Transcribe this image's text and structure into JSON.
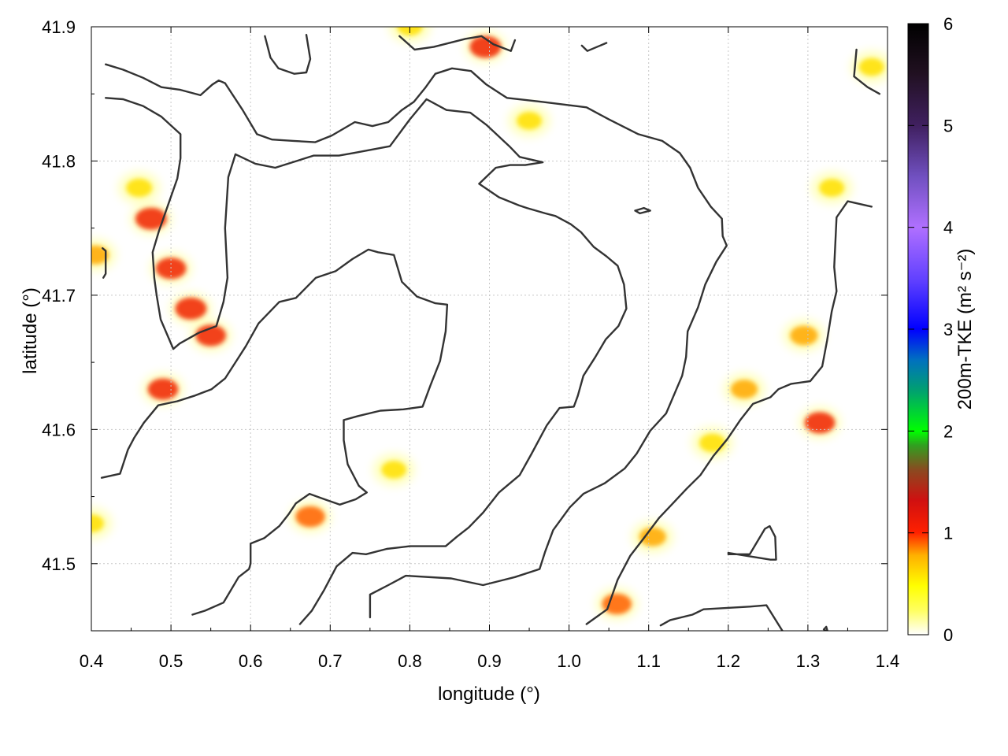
{
  "chart_data": {
    "type": "heatmap",
    "title": "",
    "xlabel": "longitude (°)",
    "ylabel": "latitude (°)",
    "colorbar_label": "200m-TKE (m² s⁻²)",
    "xlim": [
      0.4,
      1.4
    ],
    "ylim": [
      41.45,
      41.9
    ],
    "clim": [
      0,
      6
    ],
    "x_ticks": [
      "0.4",
      "0.5",
      "0.6",
      "0.7",
      "0.8",
      "0.9",
      "1.0",
      "1.1",
      "1.2",
      "1.3",
      "1.4"
    ],
    "y_ticks": [
      "41.5",
      "41.6",
      "41.7",
      "41.8",
      "41.9"
    ],
    "colorbar_ticks": [
      "0",
      "1",
      "2",
      "3",
      "4",
      "5",
      "6"
    ],
    "grid": true,
    "colorscale": [
      "#ffffff",
      "#ffff00",
      "#ff9900",
      "#ff0000",
      "#8b3a1a",
      "#00ff00",
      "#00a0a0",
      "#0000ff",
      "#a070ff",
      "#30205a",
      "#000000"
    ],
    "hotspots": [
      {
        "lon": 0.475,
        "lat": 41.757,
        "value": 1.0
      },
      {
        "lon": 0.5,
        "lat": 41.72,
        "value": 0.9
      },
      {
        "lon": 0.525,
        "lat": 41.69,
        "value": 1.0
      },
      {
        "lon": 0.55,
        "lat": 41.67,
        "value": 0.9
      },
      {
        "lon": 0.49,
        "lat": 41.63,
        "value": 0.9
      },
      {
        "lon": 0.46,
        "lat": 41.78,
        "value": 0.4
      },
      {
        "lon": 0.405,
        "lat": 41.73,
        "value": 0.5
      },
      {
        "lon": 0.895,
        "lat": 41.885,
        "value": 1.0
      },
      {
        "lon": 0.675,
        "lat": 41.535,
        "value": 0.8
      },
      {
        "lon": 1.06,
        "lat": 41.47,
        "value": 0.8
      },
      {
        "lon": 1.105,
        "lat": 41.52,
        "value": 0.5
      },
      {
        "lon": 1.315,
        "lat": 41.605,
        "value": 0.9
      },
      {
        "lon": 1.295,
        "lat": 41.67,
        "value": 0.6
      },
      {
        "lon": 1.22,
        "lat": 41.63,
        "value": 0.5
      },
      {
        "lon": 1.18,
        "lat": 41.59,
        "value": 0.4
      },
      {
        "lon": 1.33,
        "lat": 41.78,
        "value": 0.3
      },
      {
        "lon": 0.95,
        "lat": 41.83,
        "value": 0.3
      },
      {
        "lon": 0.78,
        "lat": 41.57,
        "value": 0.3
      },
      {
        "lon": 0.4,
        "lat": 41.53,
        "value": 0.3
      },
      {
        "lon": 0.8,
        "lat": 41.9,
        "value": 0.3
      },
      {
        "lon": 1.38,
        "lat": 41.87,
        "value": 0.3
      }
    ],
    "contours": [
      [
        [
          0.418,
          41.872
        ],
        [
          0.44,
          41.868
        ],
        [
          0.465,
          41.862
        ],
        [
          0.488,
          41.855
        ],
        [
          0.512,
          41.853
        ],
        [
          0.537,
          41.849
        ],
        [
          0.552,
          41.857
        ],
        [
          0.56,
          41.86
        ],
        [
          0.568,
          41.858
        ],
        [
          0.59,
          41.838
        ],
        [
          0.608,
          41.82
        ],
        [
          0.627,
          41.816
        ],
        [
          0.654,
          41.815
        ],
        [
          0.681,
          41.814
        ],
        [
          0.702,
          41.819
        ],
        [
          0.731,
          41.829
        ],
        [
          0.753,
          41.826
        ],
        [
          0.773,
          41.829
        ],
        [
          0.79,
          41.838
        ],
        [
          0.805,
          41.844
        ],
        [
          0.82,
          41.855
        ],
        [
          0.832,
          41.865
        ],
        [
          0.853,
          41.869
        ],
        [
          0.877,
          41.867
        ],
        [
          0.896,
          41.857
        ],
        [
          0.922,
          41.847
        ],
        [
          0.967,
          41.844
        ],
        [
          1.022,
          41.84
        ],
        [
          1.05,
          41.831
        ],
        [
          1.087,
          41.82
        ],
        [
          1.117,
          41.815
        ],
        [
          1.139,
          41.806
        ],
        [
          1.152,
          41.795
        ],
        [
          1.162,
          41.78
        ],
        [
          1.178,
          41.766
        ],
        [
          1.192,
          41.757
        ],
        [
          1.193,
          41.744
        ],
        [
          1.198,
          41.737
        ],
        [
          1.185,
          41.725
        ],
        [
          1.171,
          41.708
        ],
        [
          1.162,
          41.691
        ],
        [
          1.149,
          41.673
        ],
        [
          1.147,
          41.654
        ],
        [
          1.142,
          41.64
        ],
        [
          1.122,
          41.612
        ],
        [
          1.102,
          41.599
        ],
        [
          1.085,
          41.582
        ],
        [
          1.07,
          41.571
        ],
        [
          1.045,
          41.56
        ],
        [
          1.018,
          41.552
        ],
        [
          1.001,
          41.542
        ],
        [
          0.98,
          41.525
        ],
        [
          0.97,
          41.509
        ],
        [
          0.963,
          41.496
        ],
        [
          0.932,
          41.49
        ],
        [
          0.892,
          41.484
        ],
        [
          0.852,
          41.489
        ],
        [
          0.795,
          41.491
        ],
        [
          0.773,
          41.484
        ],
        [
          0.75,
          41.477
        ],
        [
          0.75,
          41.46
        ]
      ],
      [
        [
          0.418,
          41.847
        ],
        [
          0.44,
          41.846
        ],
        [
          0.465,
          41.841
        ],
        [
          0.488,
          41.833
        ],
        [
          0.512,
          41.82
        ],
        [
          0.512,
          41.802
        ],
        [
          0.508,
          41.787
        ],
        [
          0.485,
          41.748
        ],
        [
          0.477,
          41.732
        ],
        [
          0.479,
          41.713
        ],
        [
          0.482,
          41.7
        ],
        [
          0.487,
          41.682
        ],
        [
          0.503,
          41.66
        ],
        [
          0.511,
          41.664
        ],
        [
          0.535,
          41.672
        ],
        [
          0.557,
          41.677
        ],
        [
          0.566,
          41.695
        ],
        [
          0.571,
          41.713
        ],
        [
          0.568,
          41.75
        ],
        [
          0.572,
          41.788
        ],
        [
          0.581,
          41.805
        ],
        [
          0.606,
          41.798
        ],
        [
          0.631,
          41.795
        ],
        [
          0.679,
          41.804
        ],
        [
          0.711,
          41.804
        ],
        [
          0.73,
          41.806
        ],
        [
          0.775,
          41.811
        ],
        [
          0.8,
          41.831
        ],
        [
          0.821,
          41.846
        ],
        [
          0.846,
          41.838
        ],
        [
          0.876,
          41.836
        ],
        [
          0.896,
          41.827
        ],
        [
          0.925,
          41.811
        ],
        [
          0.938,
          41.803
        ],
        [
          0.967,
          41.799
        ],
        [
          0.945,
          41.797
        ],
        [
          0.926,
          41.797
        ],
        [
          0.908,
          41.795
        ],
        [
          0.887,
          41.783
        ],
        [
          0.912,
          41.773
        ],
        [
          0.937,
          41.767
        ],
        [
          0.947,
          41.765
        ],
        [
          0.97,
          41.761
        ],
        [
          0.983,
          41.759
        ],
        [
          1.002,
          41.753
        ],
        [
          1.015,
          41.747
        ],
        [
          1.031,
          41.736
        ],
        [
          1.047,
          41.729
        ],
        [
          1.061,
          41.722
        ],
        [
          1.069,
          41.708
        ],
        [
          1.072,
          41.69
        ],
        [
          1.062,
          41.677
        ],
        [
          1.046,
          41.667
        ],
        [
          1.033,
          41.654
        ],
        [
          1.018,
          41.64
        ],
        [
          1.011,
          41.625
        ],
        [
          1.006,
          41.617
        ],
        [
          0.988,
          41.616
        ],
        [
          0.972,
          41.603
        ],
        [
          0.953,
          41.582
        ],
        [
          0.938,
          41.566
        ],
        [
          0.912,
          41.553
        ],
        [
          0.892,
          41.538
        ],
        [
          0.874,
          41.527
        ],
        [
          0.859,
          41.52
        ],
        [
          0.845,
          41.513
        ],
        [
          0.8,
          41.513
        ],
        [
          0.771,
          41.511
        ],
        [
          0.745,
          41.507
        ],
        [
          0.728,
          41.508
        ],
        [
          0.708,
          41.498
        ],
        [
          0.692,
          41.48
        ],
        [
          0.677,
          41.465
        ],
        [
          0.662,
          41.455
        ]
      ],
      [
        [
          0.413,
          41.564
        ],
        [
          0.436,
          41.567
        ],
        [
          0.446,
          41.585
        ],
        [
          0.454,
          41.594
        ],
        [
          0.466,
          41.605
        ],
        [
          0.484,
          41.618
        ],
        [
          0.508,
          41.621
        ],
        [
          0.529,
          41.625
        ],
        [
          0.551,
          41.63
        ],
        [
          0.568,
          41.638
        ],
        [
          0.581,
          41.65
        ],
        [
          0.594,
          41.662
        ],
        [
          0.61,
          41.679
        ],
        [
          0.636,
          41.695
        ],
        [
          0.657,
          41.698
        ],
        [
          0.682,
          41.713
        ],
        [
          0.707,
          41.718
        ],
        [
          0.728,
          41.727
        ],
        [
          0.748,
          41.734
        ],
        [
          0.76,
          41.732
        ],
        [
          0.78,
          41.73
        ],
        [
          0.79,
          41.71
        ],
        [
          0.809,
          41.699
        ],
        [
          0.832,
          41.694
        ],
        [
          0.847,
          41.693
        ],
        [
          0.845,
          41.673
        ],
        [
          0.838,
          41.651
        ],
        [
          0.826,
          41.633
        ],
        [
          0.816,
          41.617
        ],
        [
          0.792,
          41.615
        ],
        [
          0.763,
          41.614
        ],
        [
          0.735,
          41.61
        ],
        [
          0.717,
          41.607
        ],
        [
          0.717,
          41.592
        ],
        [
          0.722,
          41.574
        ],
        [
          0.736,
          41.558
        ],
        [
          0.746,
          41.553
        ],
        [
          0.732,
          41.548
        ],
        [
          0.712,
          41.544
        ],
        [
          0.688,
          41.549
        ],
        [
          0.674,
          41.552
        ],
        [
          0.657,
          41.545
        ],
        [
          0.648,
          41.537
        ],
        [
          0.636,
          41.528
        ],
        [
          0.617,
          41.519
        ],
        [
          0.6,
          41.515
        ],
        [
          0.6,
          41.5
        ],
        [
          0.598,
          41.496
        ],
        [
          0.585,
          41.49
        ],
        [
          0.566,
          41.471
        ],
        [
          0.543,
          41.465
        ],
        [
          0.527,
          41.462
        ]
      ],
      [
        [
          1.022,
          41.455
        ],
        [
          1.048,
          41.466
        ],
        [
          1.061,
          41.488
        ],
        [
          1.077,
          41.506
        ],
        [
          1.094,
          41.519
        ],
        [
          1.113,
          41.534
        ],
        [
          1.132,
          41.546
        ],
        [
          1.148,
          41.556
        ],
        [
          1.165,
          41.566
        ],
        [
          1.181,
          41.58
        ],
        [
          1.199,
          41.593
        ],
        [
          1.215,
          41.607
        ],
        [
          1.231,
          41.619
        ],
        [
          1.253,
          41.624
        ],
        [
          1.263,
          41.63
        ],
        [
          1.279,
          41.634
        ],
        [
          1.303,
          41.636
        ],
        [
          1.318,
          41.647
        ],
        [
          1.324,
          41.666
        ],
        [
          1.33,
          41.688
        ],
        [
          1.336,
          41.703
        ],
        [
          1.333,
          41.721
        ],
        [
          1.336,
          41.758
        ],
        [
          1.35,
          41.77
        ],
        [
          1.38,
          41.766
        ]
      ],
      [
        [
          1.115,
          41.454
        ],
        [
          1.127,
          41.458
        ],
        [
          1.155,
          41.462
        ],
        [
          1.169,
          41.466
        ],
        [
          1.227,
          41.468
        ],
        [
          1.248,
          41.469
        ],
        [
          1.268,
          41.45
        ]
      ],
      [
        [
          1.2,
          41.507
        ],
        [
          1.227,
          41.507
        ],
        [
          1.246,
          41.526
        ],
        [
          1.252,
          41.528
        ],
        [
          1.259,
          41.52
        ],
        [
          1.26,
          41.503
        ],
        [
          1.253,
          41.503
        ],
        [
          1.2,
          41.508
        ]
      ],
      [
        [
          1.083,
          41.763
        ],
        [
          1.094,
          41.765
        ],
        [
          1.102,
          41.763
        ],
        [
          1.089,
          41.761
        ],
        [
          1.083,
          41.763
        ]
      ],
      [
        [
          1.361,
          41.883
        ],
        [
          1.358,
          41.863
        ],
        [
          1.375,
          41.855
        ],
        [
          1.39,
          41.85
        ]
      ],
      [
        [
          1.016,
          41.886
        ],
        [
          1.023,
          41.882
        ],
        [
          1.047,
          41.888
        ]
      ],
      [
        [
          0.787,
          41.893
        ],
        [
          0.806,
          41.883
        ],
        [
          0.83,
          41.885
        ],
        [
          0.87,
          41.891
        ],
        [
          0.89,
          41.893
        ],
        [
          0.905,
          41.887
        ],
        [
          0.927,
          41.882
        ],
        [
          0.932,
          41.89
        ]
      ],
      [
        [
          0.618,
          41.893
        ],
        [
          0.625,
          41.877
        ],
        [
          0.635,
          41.869
        ],
        [
          0.655,
          41.865
        ],
        [
          0.67,
          41.866
        ],
        [
          0.675,
          41.876
        ],
        [
          0.67,
          41.894
        ]
      ],
      [
        [
          0.414,
          41.735
        ],
        [
          0.418,
          41.733
        ],
        [
          0.418,
          41.716
        ],
        [
          0.415,
          41.713
        ]
      ],
      [
        [
          1.32,
          41.451
        ],
        [
          1.323,
          41.453
        ],
        [
          1.325,
          41.449
        ],
        [
          1.32,
          41.451
        ]
      ]
    ]
  }
}
